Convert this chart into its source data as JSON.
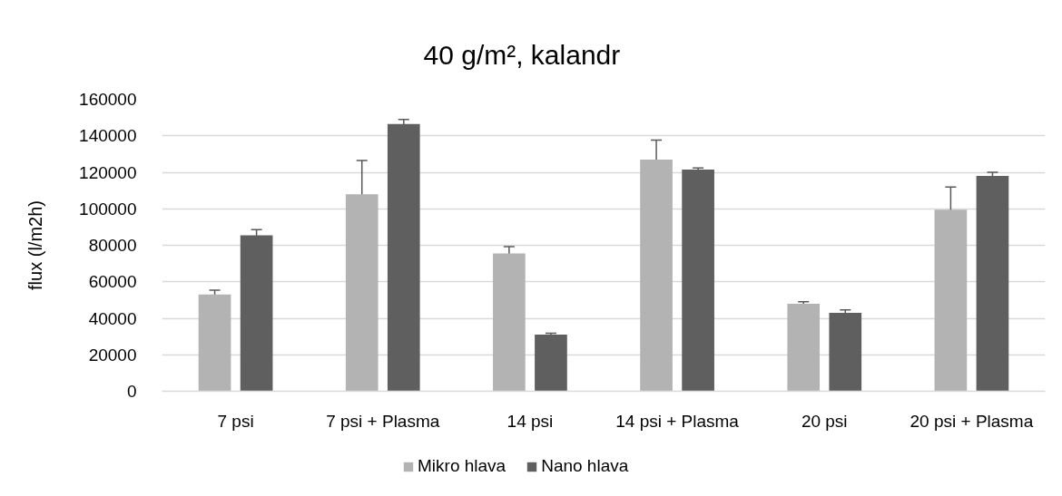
{
  "chart_data": {
    "type": "bar",
    "title": "40 g/m², kalandr",
    "ylabel": "flux (l/m2h)",
    "categories": [
      "7 psi",
      "7 psi + Plasma",
      "14 psi",
      "14 psi + Plasma",
      "20 psi",
      "20 psi + Plasma"
    ],
    "series": [
      {
        "name": "Mikro hlava",
        "color": "#b3b3b3",
        "values": [
          53000,
          108000,
          75500,
          127000,
          48000,
          99500
        ],
        "errors": [
          2400,
          18400,
          3700,
          10700,
          1100,
          12400
        ]
      },
      {
        "name": "Nano hlava",
        "color": "#5f5f5f",
        "values": [
          85500,
          146500,
          31000,
          121500,
          43000,
          118000
        ],
        "errors": [
          3100,
          2500,
          800,
          800,
          1600,
          2000
        ]
      }
    ],
    "ylim": [
      0,
      160000
    ],
    "yticks": [
      0,
      20000,
      40000,
      60000,
      80000,
      100000,
      120000,
      140000,
      160000
    ],
    "grid": "y",
    "legend": "bottom"
  }
}
